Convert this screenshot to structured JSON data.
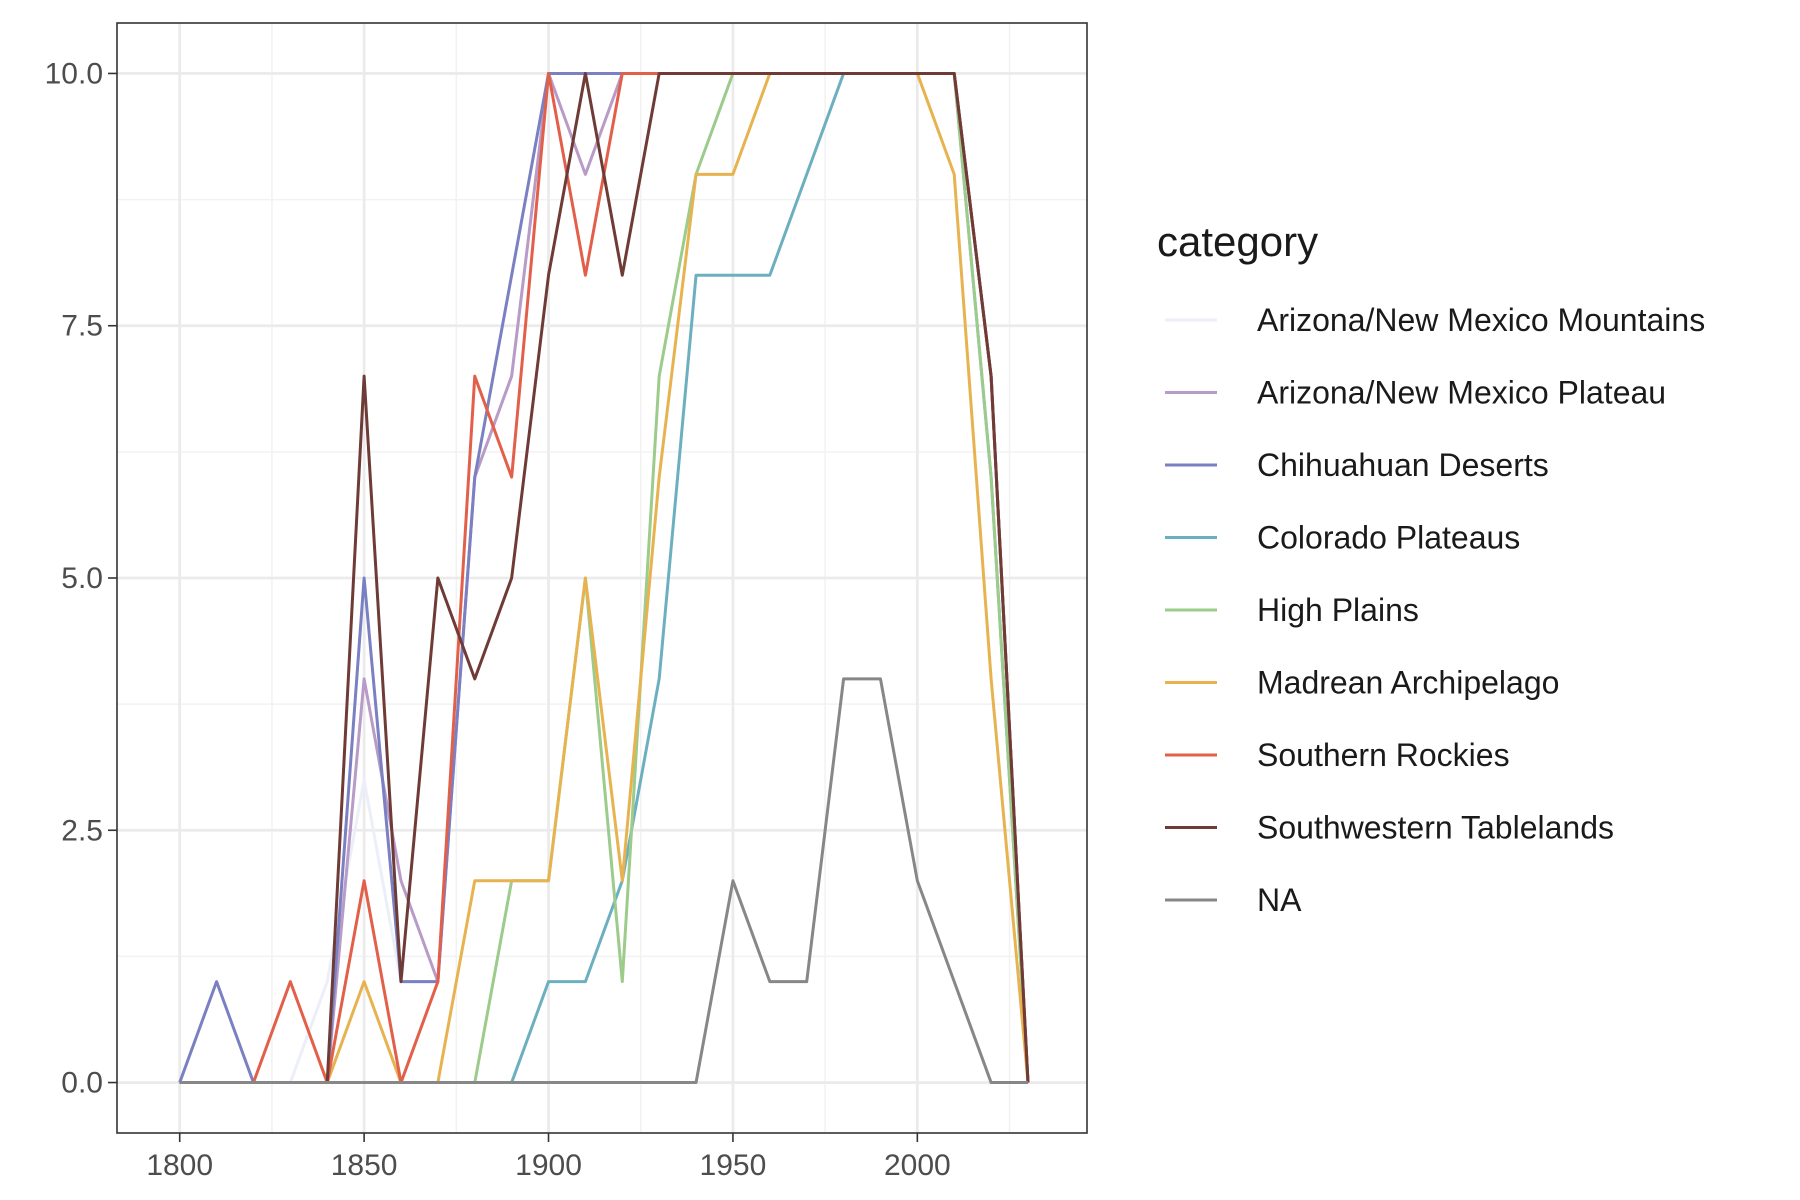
{
  "chart_data": {
    "type": "line",
    "title": "",
    "xlabel": "",
    "ylabel": "",
    "xlim": [
      1783,
      2046
    ],
    "ylim": [
      -0.5,
      10.5
    ],
    "x_ticks": [
      1800,
      1850,
      1900,
      1950,
      2000
    ],
    "x_tick_labels": [
      "1800",
      "1850",
      "1900",
      "1950",
      "2000"
    ],
    "y_ticks": [
      0,
      2.5,
      5,
      7.5,
      10
    ],
    "y_tick_labels": [
      "0.0",
      "2.5",
      "5.0",
      "7.5",
      "10.0"
    ],
    "grid": true,
    "legend": {
      "title": "category",
      "position": "right"
    },
    "x": [
      1800,
      1810,
      1820,
      1830,
      1840,
      1850,
      1860,
      1870,
      1880,
      1890,
      1900,
      1910,
      1920,
      1930,
      1940,
      1950,
      1960,
      1970,
      1980,
      1990,
      2000,
      2010,
      2020,
      2030
    ],
    "series": [
      {
        "name": "Arizona/New Mexico Mountains",
        "color": "#eceff9",
        "values": [
          0,
          0,
          0,
          0,
          1,
          3,
          1,
          1,
          6,
          7,
          10,
          10,
          10,
          10,
          10,
          10,
          10,
          10,
          10,
          10,
          10,
          10,
          7,
          0
        ]
      },
      {
        "name": "Arizona/New Mexico Plateau",
        "color": "#b89bc7",
        "values": [
          0,
          0,
          0,
          0,
          0,
          4,
          2,
          1,
          6,
          7,
          10,
          9,
          10,
          10,
          10,
          10,
          10,
          10,
          10,
          10,
          10,
          10,
          7,
          0
        ]
      },
      {
        "name": "Chihuahuan Deserts",
        "color": "#7a80c2",
        "values": [
          0,
          1,
          0,
          0,
          0,
          5,
          1,
          1,
          6,
          8,
          10,
          10,
          10,
          10,
          10,
          10,
          10,
          10,
          10,
          10,
          10,
          10,
          7,
          0
        ]
      },
      {
        "name": "Colorado Plateaus",
        "color": "#6cb0c0",
        "values": [
          0,
          0,
          0,
          0,
          0,
          0,
          0,
          0,
          0,
          0,
          1,
          1,
          2,
          4,
          8,
          8,
          8,
          9,
          10,
          10,
          10,
          10,
          6,
          0
        ]
      },
      {
        "name": "High Plains",
        "color": "#9ccb8b",
        "values": [
          0,
          0,
          0,
          0,
          0,
          0,
          0,
          0,
          0,
          2,
          2,
          5,
          1,
          7,
          9,
          10,
          10,
          10,
          10,
          10,
          10,
          10,
          6,
          0
        ]
      },
      {
        "name": "Madrean Archipelago",
        "color": "#e7b350",
        "values": [
          0,
          0,
          0,
          0,
          0,
          1,
          0,
          0,
          2,
          2,
          2,
          5,
          2,
          6,
          9,
          9,
          10,
          10,
          10,
          10,
          10,
          9,
          4,
          0
        ]
      },
      {
        "name": "Southern Rockies",
        "color": "#e2604a",
        "values": [
          0,
          0,
          0,
          1,
          0,
          2,
          0,
          1,
          7,
          6,
          10,
          8,
          10,
          10,
          10,
          10,
          10,
          10,
          10,
          10,
          10,
          10,
          7,
          0
        ]
      },
      {
        "name": "Southwestern Tablelands",
        "color": "#6e3b36",
        "values": [
          0,
          0,
          0,
          0,
          0,
          7,
          1,
          5,
          4,
          5,
          8,
          10,
          8,
          10,
          10,
          10,
          10,
          10,
          10,
          10,
          10,
          10,
          7,
          0
        ]
      },
      {
        "name": "NA",
        "color": "#878787",
        "values": [
          0,
          0,
          0,
          0,
          0,
          0,
          0,
          0,
          0,
          0,
          0,
          0,
          0,
          0,
          0,
          2,
          1,
          1,
          4,
          4,
          2,
          1,
          0,
          0
        ]
      }
    ]
  }
}
